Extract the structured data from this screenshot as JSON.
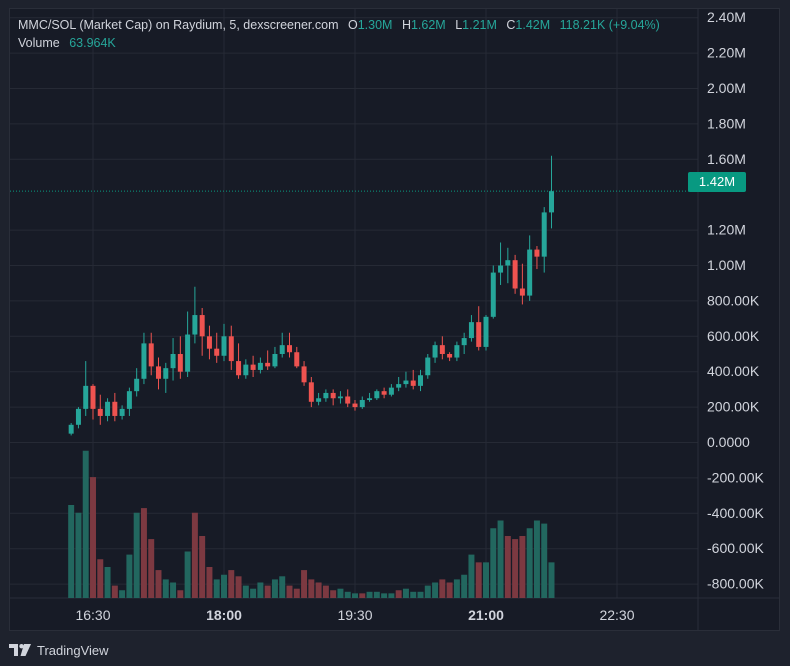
{
  "legend": {
    "symbol": "MMC/SOL (Market Cap) on Raydium, 5, dexscreener.com",
    "o_label": "O",
    "o_value": "1.30M",
    "h_label": "H",
    "h_value": "1.62M",
    "l_label": "L",
    "l_value": "1.21M",
    "c_label": "C",
    "c_value": "1.42M",
    "change": "118.21K (+9.04%)",
    "volume_label": "Volume",
    "volume_value": "63.964K"
  },
  "price_badge": "1.42M",
  "footer": {
    "brand": "TradingView"
  },
  "colors": {
    "up": "#26a69a",
    "down": "#ef5350",
    "up_volume": "#22675f",
    "down_volume": "#7c3941",
    "background": "#171b26",
    "grid": "#262a35",
    "badge": "#089981"
  },
  "chart_data": {
    "type": "candlestick",
    "y_ticks": [
      "2.40M",
      "2.20M",
      "2.00M",
      "1.80M",
      "1.60M",
      "1.42M",
      "1.20M",
      "1.00M",
      "800.00K",
      "600.00K",
      "400.00K",
      "200.00K",
      "0.0000",
      "-200.00K",
      "-400.00K",
      "-600.00K",
      "-800.00K"
    ],
    "y_tick_values": [
      2400000,
      2200000,
      2000000,
      1800000,
      1600000,
      1200000,
      1000000,
      800000,
      600000,
      400000,
      200000,
      0,
      -200000,
      -400000,
      -600000,
      -800000
    ],
    "x_ticks": [
      {
        "label": "16:30",
        "minute": 990,
        "bold": false
      },
      {
        "label": "18:00",
        "minute": 1080,
        "bold": true
      },
      {
        "label": "19:30",
        "minute": 1170,
        "bold": false
      },
      {
        "label": "21:00",
        "minute": 1260,
        "bold": true
      },
      {
        "label": "22:30",
        "minute": 1350,
        "bold": false
      }
    ],
    "current_price": 1420000,
    "interval_minutes": 5,
    "first_candle_minute": 975,
    "candles": [
      [
        50000,
        110000,
        40000,
        100000
      ],
      [
        100000,
        200000,
        80000,
        190000
      ],
      [
        190000,
        460000,
        150000,
        320000
      ],
      [
        320000,
        330000,
        130000,
        190000
      ],
      [
        190000,
        270000,
        100000,
        150000
      ],
      [
        150000,
        250000,
        120000,
        230000
      ],
      [
        230000,
        280000,
        120000,
        150000
      ],
      [
        150000,
        210000,
        130000,
        190000
      ],
      [
        190000,
        310000,
        150000,
        290000
      ],
      [
        290000,
        420000,
        260000,
        360000
      ],
      [
        360000,
        620000,
        330000,
        560000
      ],
      [
        560000,
        620000,
        380000,
        430000
      ],
      [
        430000,
        480000,
        300000,
        360000
      ],
      [
        360000,
        450000,
        280000,
        420000
      ],
      [
        420000,
        590000,
        350000,
        500000
      ],
      [
        500000,
        600000,
        360000,
        400000
      ],
      [
        400000,
        740000,
        370000,
        610000
      ],
      [
        610000,
        880000,
        560000,
        720000
      ],
      [
        720000,
        760000,
        490000,
        600000
      ],
      [
        600000,
        660000,
        470000,
        530000
      ],
      [
        530000,
        620000,
        450000,
        490000
      ],
      [
        490000,
        670000,
        460000,
        600000
      ],
      [
        600000,
        660000,
        410000,
        460000
      ],
      [
        460000,
        560000,
        360000,
        380000
      ],
      [
        380000,
        470000,
        360000,
        440000
      ],
      [
        440000,
        490000,
        370000,
        410000
      ],
      [
        410000,
        480000,
        390000,
        450000
      ],
      [
        450000,
        520000,
        410000,
        430000
      ],
      [
        430000,
        540000,
        420000,
        500000
      ],
      [
        500000,
        620000,
        480000,
        550000
      ],
      [
        550000,
        620000,
        480000,
        510000
      ],
      [
        510000,
        540000,
        420000,
        430000
      ],
      [
        430000,
        460000,
        320000,
        340000
      ],
      [
        340000,
        370000,
        200000,
        230000
      ],
      [
        230000,
        280000,
        210000,
        250000
      ],
      [
        250000,
        300000,
        230000,
        280000
      ],
      [
        280000,
        300000,
        210000,
        250000
      ],
      [
        250000,
        290000,
        220000,
        260000
      ],
      [
        260000,
        300000,
        200000,
        220000
      ],
      [
        220000,
        240000,
        180000,
        200000
      ],
      [
        200000,
        260000,
        190000,
        240000
      ],
      [
        240000,
        280000,
        230000,
        250000
      ],
      [
        250000,
        300000,
        240000,
        290000
      ],
      [
        290000,
        310000,
        250000,
        270000
      ],
      [
        270000,
        330000,
        260000,
        310000
      ],
      [
        310000,
        370000,
        290000,
        330000
      ],
      [
        330000,
        400000,
        310000,
        350000
      ],
      [
        350000,
        410000,
        300000,
        320000
      ],
      [
        320000,
        410000,
        290000,
        380000
      ],
      [
        380000,
        500000,
        360000,
        480000
      ],
      [
        480000,
        570000,
        450000,
        550000
      ],
      [
        550000,
        600000,
        470000,
        500000
      ],
      [
        500000,
        510000,
        460000,
        480000
      ],
      [
        480000,
        570000,
        460000,
        550000
      ],
      [
        550000,
        620000,
        500000,
        590000
      ],
      [
        590000,
        720000,
        570000,
        680000
      ],
      [
        680000,
        770000,
        520000,
        540000
      ],
      [
        540000,
        720000,
        520000,
        710000
      ],
      [
        710000,
        1000000,
        700000,
        960000
      ],
      [
        960000,
        1130000,
        890000,
        1000000
      ],
      [
        1000000,
        1100000,
        900000,
        1030000
      ],
      [
        1030000,
        1060000,
        840000,
        870000
      ],
      [
        870000,
        1010000,
        780000,
        830000
      ],
      [
        830000,
        1170000,
        800000,
        1090000
      ],
      [
        1090000,
        1110000,
        980000,
        1050000
      ],
      [
        1050000,
        1330000,
        960000,
        1300000
      ],
      [
        1300000,
        1620000,
        1210000,
        1420000
      ]
    ],
    "volumes": [
      [
        60,
        "up"
      ],
      [
        55,
        "up"
      ],
      [
        95,
        "up"
      ],
      [
        78,
        "down"
      ],
      [
        25,
        "down"
      ],
      [
        20,
        "up"
      ],
      [
        8,
        "down"
      ],
      [
        5,
        "up"
      ],
      [
        28,
        "up"
      ],
      [
        55,
        "up"
      ],
      [
        58,
        "down"
      ],
      [
        38,
        "down"
      ],
      [
        18,
        "down"
      ],
      [
        12,
        "up"
      ],
      [
        10,
        "up"
      ],
      [
        5,
        "down"
      ],
      [
        30,
        "up"
      ],
      [
        55,
        "down"
      ],
      [
        40,
        "down"
      ],
      [
        20,
        "down"
      ],
      [
        12,
        "up"
      ],
      [
        15,
        "up"
      ],
      [
        18,
        "down"
      ],
      [
        14,
        "down"
      ],
      [
        8,
        "up"
      ],
      [
        6,
        "up"
      ],
      [
        10,
        "up"
      ],
      [
        8,
        "down"
      ],
      [
        12,
        "up"
      ],
      [
        14,
        "up"
      ],
      [
        8,
        "down"
      ],
      [
        6,
        "down"
      ],
      [
        18,
        "down"
      ],
      [
        12,
        "down"
      ],
      [
        10,
        "down"
      ],
      [
        8,
        "down"
      ],
      [
        5,
        "down"
      ],
      [
        6,
        "up"
      ],
      [
        4,
        "up"
      ],
      [
        3,
        "up"
      ],
      [
        3,
        "down"
      ],
      [
        4,
        "up"
      ],
      [
        4,
        "up"
      ],
      [
        3,
        "up"
      ],
      [
        3,
        "up"
      ],
      [
        5,
        "down"
      ],
      [
        6,
        "up"
      ],
      [
        4,
        "up"
      ],
      [
        4,
        "up"
      ],
      [
        8,
        "up"
      ],
      [
        10,
        "up"
      ],
      [
        12,
        "down"
      ],
      [
        10,
        "down"
      ],
      [
        12,
        "up"
      ],
      [
        15,
        "up"
      ],
      [
        28,
        "up"
      ],
      [
        23,
        "down"
      ],
      [
        23,
        "up"
      ],
      [
        45,
        "up"
      ],
      [
        50,
        "up"
      ],
      [
        40,
        "down"
      ],
      [
        38,
        "down"
      ],
      [
        40,
        "down"
      ],
      [
        45,
        "up"
      ],
      [
        50,
        "up"
      ],
      [
        48,
        "up"
      ],
      [
        23,
        "up"
      ]
    ]
  }
}
